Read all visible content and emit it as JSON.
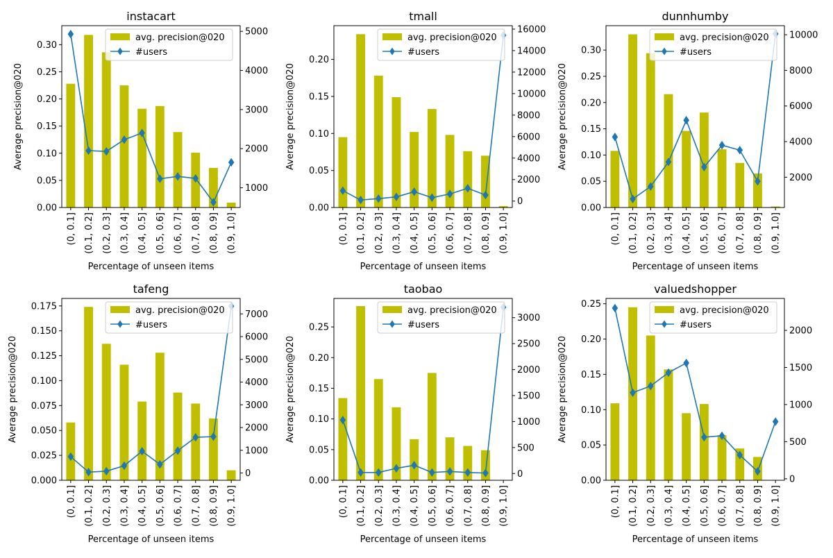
{
  "figure": {
    "legend_bar_label": "avg. precision@020",
    "legend_line_label": "#users",
    "bar_color": "#bfbf00",
    "line_color": "#1f77b4"
  },
  "chart_data": [
    {
      "type": "bar",
      "title": "instacart",
      "xlabel": "Percentage of unseen items",
      "ylabel": "Average precision@020",
      "categories": [
        "(0, 0.1]",
        "(0.1, 0.2]",
        "(0.2, 0.3]",
        "(0.3, 0.4]",
        "(0.4, 0.5]",
        "(0.5, 0.6]",
        "(0.6, 0.7]",
        "(0.7, 0.8]",
        "(0.8, 0.9]",
        "(0.9, 1.0]"
      ],
      "ylim": [
        0,
        0.335
      ],
      "yticks": [
        0.0,
        0.05,
        0.1,
        0.15,
        0.2,
        0.25,
        0.3
      ],
      "ytick_labels": [
        "0.00",
        "0.05",
        "0.10",
        "0.15",
        "0.20",
        "0.25",
        "0.30"
      ],
      "y2lim": [
        495,
        5145
      ],
      "y2ticks": [
        1000,
        2000,
        3000,
        4000,
        5000
      ],
      "y2tick_labels": [
        "1000",
        "2000",
        "3000",
        "4000",
        "5000"
      ],
      "legend": "top-right",
      "series": [
        {
          "name": "avg. precision@020",
          "kind": "bar",
          "axis": "left",
          "values": [
            0.228,
            0.318,
            0.286,
            0.225,
            0.182,
            0.187,
            0.139,
            0.101,
            0.073,
            0.009
          ]
        },
        {
          "name": "#users",
          "kind": "line",
          "axis": "right",
          "marker": "diamond",
          "values": [
            4930,
            1950,
            1930,
            2230,
            2400,
            1230,
            1290,
            1240,
            630,
            1650
          ]
        }
      ]
    },
    {
      "type": "bar",
      "title": "tmall",
      "xlabel": "Percentage of unseen items",
      "ylabel": "Average precision@020",
      "categories": [
        "(0, 0.1]",
        "(0.1, 0.2]",
        "(0.2, 0.3]",
        "(0.3, 0.4]",
        "(0.4, 0.5]",
        "(0.5, 0.6]",
        "(0.6, 0.7]",
        "(0.7, 0.8]",
        "(0.8, 0.9]",
        "(0.9, 1.0]"
      ],
      "ylim": [
        0,
        0.2455
      ],
      "yticks": [
        0.0,
        0.05,
        0.1,
        0.15,
        0.2
      ],
      "ytick_labels": [
        "0.00",
        "0.05",
        "0.10",
        "0.15",
        "0.20"
      ],
      "y2lim": [
        -600,
        16320
      ],
      "y2ticks": [
        0,
        2000,
        4000,
        6000,
        8000,
        10000,
        12000,
        14000,
        16000
      ],
      "y2tick_labels": [
        "0",
        "2000",
        "4000",
        "6000",
        "8000",
        "10000",
        "12000",
        "14000",
        "16000"
      ],
      "legend": "top-right",
      "series": [
        {
          "name": "avg. precision@020",
          "kind": "bar",
          "axis": "left",
          "values": [
            0.095,
            0.234,
            0.178,
            0.149,
            0.102,
            0.133,
            0.098,
            0.076,
            0.07,
            0.002
          ]
        },
        {
          "name": "#users",
          "kind": "line",
          "axis": "right",
          "marker": "diamond",
          "values": [
            970,
            100,
            230,
            390,
            870,
            320,
            660,
            1190,
            560,
            15420
          ]
        }
      ]
    },
    {
      "type": "bar",
      "title": "dunnhumby",
      "xlabel": "Percentage of unseen items",
      "ylabel": "Average precision@020",
      "categories": [
        "(0, 0.1]",
        "(0.1, 0.2]",
        "(0.2, 0.3]",
        "(0.3, 0.4]",
        "(0.4, 0.5]",
        "(0.5, 0.6]",
        "(0.6, 0.7]",
        "(0.7, 0.8]",
        "(0.8, 0.9]",
        "(0.9, 1.0]"
      ],
      "ylim": [
        0,
        0.3465
      ],
      "yticks": [
        0.0,
        0.05,
        0.1,
        0.15,
        0.2,
        0.25,
        0.3
      ],
      "ytick_labels": [
        "0.00",
        "0.05",
        "0.10",
        "0.15",
        "0.20",
        "0.25",
        "0.30"
      ],
      "y2lim": [
        300,
        10510
      ],
      "y2ticks": [
        2000,
        4000,
        6000,
        8000,
        10000
      ],
      "y2tick_labels": [
        "2000",
        "4000",
        "6000",
        "8000",
        "10000"
      ],
      "legend": "top-right",
      "series": [
        {
          "name": "avg. precision@020",
          "kind": "bar",
          "axis": "left",
          "values": [
            0.108,
            0.33,
            0.294,
            0.216,
            0.146,
            0.181,
            0.111,
            0.085,
            0.065,
            0.002
          ]
        },
        {
          "name": "#users",
          "kind": "line",
          "axis": "right",
          "marker": "diamond",
          "values": [
            4260,
            780,
            1480,
            2860,
            5200,
            2570,
            3800,
            3520,
            1770,
            10050
          ]
        }
      ]
    },
    {
      "type": "bar",
      "title": "tafeng",
      "xlabel": "Percentage of unseen items",
      "ylabel": "Average precision@020",
      "categories": [
        "(0, 0.1]",
        "(0.1, 0.2]",
        "(0.2, 0.3]",
        "(0.3, 0.4]",
        "(0.4, 0.5]",
        "(0.5, 0.6]",
        "(0.6, 0.7]",
        "(0.7, 0.8]",
        "(0.8, 0.9]",
        "(0.9, 1.0]"
      ],
      "ylim": [
        0,
        0.1825
      ],
      "yticks": [
        0.0,
        0.025,
        0.05,
        0.075,
        0.1,
        0.125,
        0.15,
        0.175
      ],
      "ytick_labels": [
        "0.000",
        "0.025",
        "0.050",
        "0.075",
        "0.100",
        "0.125",
        "0.150",
        "0.175"
      ],
      "y2lim": [
        -320,
        7680
      ],
      "y2ticks": [
        0,
        1000,
        2000,
        3000,
        4000,
        5000,
        6000,
        7000
      ],
      "y2tick_labels": [
        "0",
        "1000",
        "2000",
        "3000",
        "4000",
        "5000",
        "6000",
        "7000"
      ],
      "legend": "top-right",
      "series": [
        {
          "name": "avg. precision@020",
          "kind": "bar",
          "axis": "left",
          "values": [
            0.058,
            0.174,
            0.137,
            0.116,
            0.079,
            0.128,
            0.088,
            0.077,
            0.062,
            0.01
          ]
        },
        {
          "name": "#users",
          "kind": "line",
          "axis": "right",
          "marker": "diamond",
          "values": [
            720,
            40,
            80,
            320,
            960,
            380,
            980,
            1570,
            1600,
            7340
          ]
        }
      ]
    },
    {
      "type": "bar",
      "title": "taobao",
      "xlabel": "Percentage of unseen items",
      "ylabel": "Average precision@020",
      "categories": [
        "(0, 0.1]",
        "(0.1, 0.2]",
        "(0.2, 0.3]",
        "(0.3, 0.4]",
        "(0.4, 0.5]",
        "(0.5, 0.6]",
        "(0.6, 0.7]",
        "(0.7, 0.8]",
        "(0.8, 0.9]",
        "(0.9, 1.0]"
      ],
      "ylim": [
        0,
        0.2965
      ],
      "yticks": [
        0.0,
        0.05,
        0.1,
        0.15,
        0.2,
        0.25
      ],
      "ytick_labels": [
        "0.00",
        "0.05",
        "0.10",
        "0.15",
        "0.20",
        "0.25"
      ],
      "y2lim": [
        -130,
        3370
      ],
      "y2ticks": [
        0,
        500,
        1000,
        1500,
        2000,
        2500,
        3000
      ],
      "y2tick_labels": [
        "0",
        "500",
        "1000",
        "1500",
        "2000",
        "2500",
        "3000"
      ],
      "legend": "top-right",
      "series": [
        {
          "name": "avg. precision@020",
          "kind": "bar",
          "axis": "left",
          "values": [
            0.134,
            0.284,
            0.165,
            0.119,
            0.067,
            0.175,
            0.07,
            0.056,
            0.049,
            0.0
          ]
        },
        {
          "name": "#users",
          "kind": "line",
          "axis": "right",
          "marker": "diamond",
          "values": [
            1030,
            20,
            20,
            100,
            160,
            20,
            40,
            20,
            10,
            3200
          ]
        }
      ]
    },
    {
      "type": "bar",
      "title": "valuedshopper",
      "xlabel": "Percentage of unseen items",
      "ylabel": "Average precision@020",
      "categories": [
        "(0, 0.1]",
        "(0.1, 0.2]",
        "(0.2, 0.3]",
        "(0.3, 0.4]",
        "(0.4, 0.5]",
        "(0.5, 0.6]",
        "(0.6, 0.7]",
        "(0.7, 0.8]",
        "(0.8, 0.9]",
        "(0.9, 1.0]"
      ],
      "ylim": [
        0,
        0.2575
      ],
      "yticks": [
        0.0,
        0.05,
        0.1,
        0.15,
        0.2,
        0.25
      ],
      "ytick_labels": [
        "0.00",
        "0.05",
        "0.10",
        "0.15",
        "0.20",
        "0.25"
      ],
      "y2lim": [
        -20,
        2430
      ],
      "y2ticks": [
        0,
        500,
        1000,
        1500,
        2000
      ],
      "y2tick_labels": [
        "0",
        "500",
        "1000",
        "1500",
        "2000"
      ],
      "legend": "top-right",
      "series": [
        {
          "name": "avg. precision@020",
          "kind": "bar",
          "axis": "left",
          "values": [
            0.109,
            0.245,
            0.205,
            0.157,
            0.095,
            0.108,
            0.064,
            0.045,
            0.033,
            0.0
          ]
        },
        {
          "name": "#users",
          "kind": "line",
          "axis": "right",
          "marker": "diamond",
          "values": [
            2300,
            1160,
            1250,
            1430,
            1560,
            560,
            580,
            320,
            100,
            770
          ]
        }
      ]
    }
  ]
}
